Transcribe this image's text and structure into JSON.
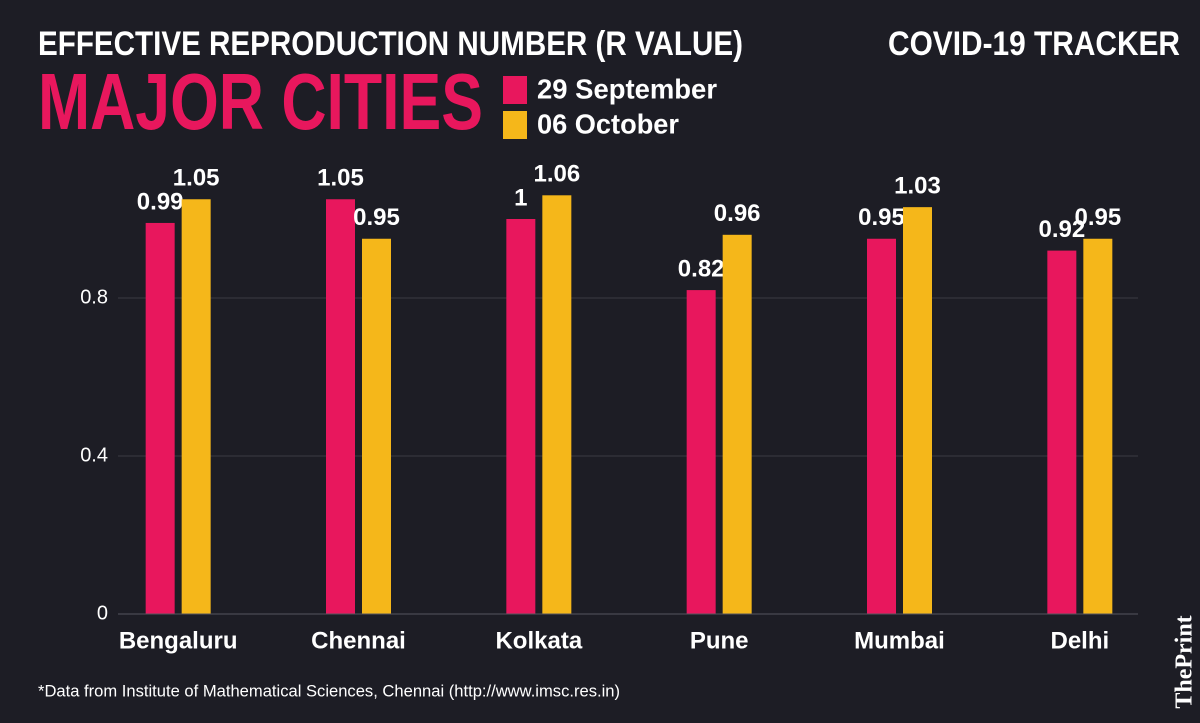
{
  "chart_data": {
    "type": "bar",
    "title": "EFFECTIVE REPRODUCTION NUMBER (R VALUE)",
    "subtitle": "MAJOR CITIES",
    "header": "COVID-19 TRACKER",
    "footnote": "*Data from Institute of Mathematical Sciences, Chennai (http://www.imsc.res.in)",
    "logo": "ThePrint",
    "categories": [
      "Bengaluru",
      "Chennai",
      "Kolkata",
      "Pune",
      "Mumbai",
      "Delhi"
    ],
    "series": [
      {
        "name": "29 September",
        "color": "#e8175d",
        "values": [
          0.99,
          1.05,
          1,
          0.82,
          0.95,
          0.92
        ]
      },
      {
        "name": "06 October",
        "color": "#f5b71a",
        "values": [
          1.05,
          0.95,
          1.06,
          0.96,
          1.03,
          0.95
        ]
      }
    ],
    "ylim": [
      0,
      1.2
    ],
    "yticks": [
      0,
      0.4,
      0.8
    ],
    "grid": true
  }
}
